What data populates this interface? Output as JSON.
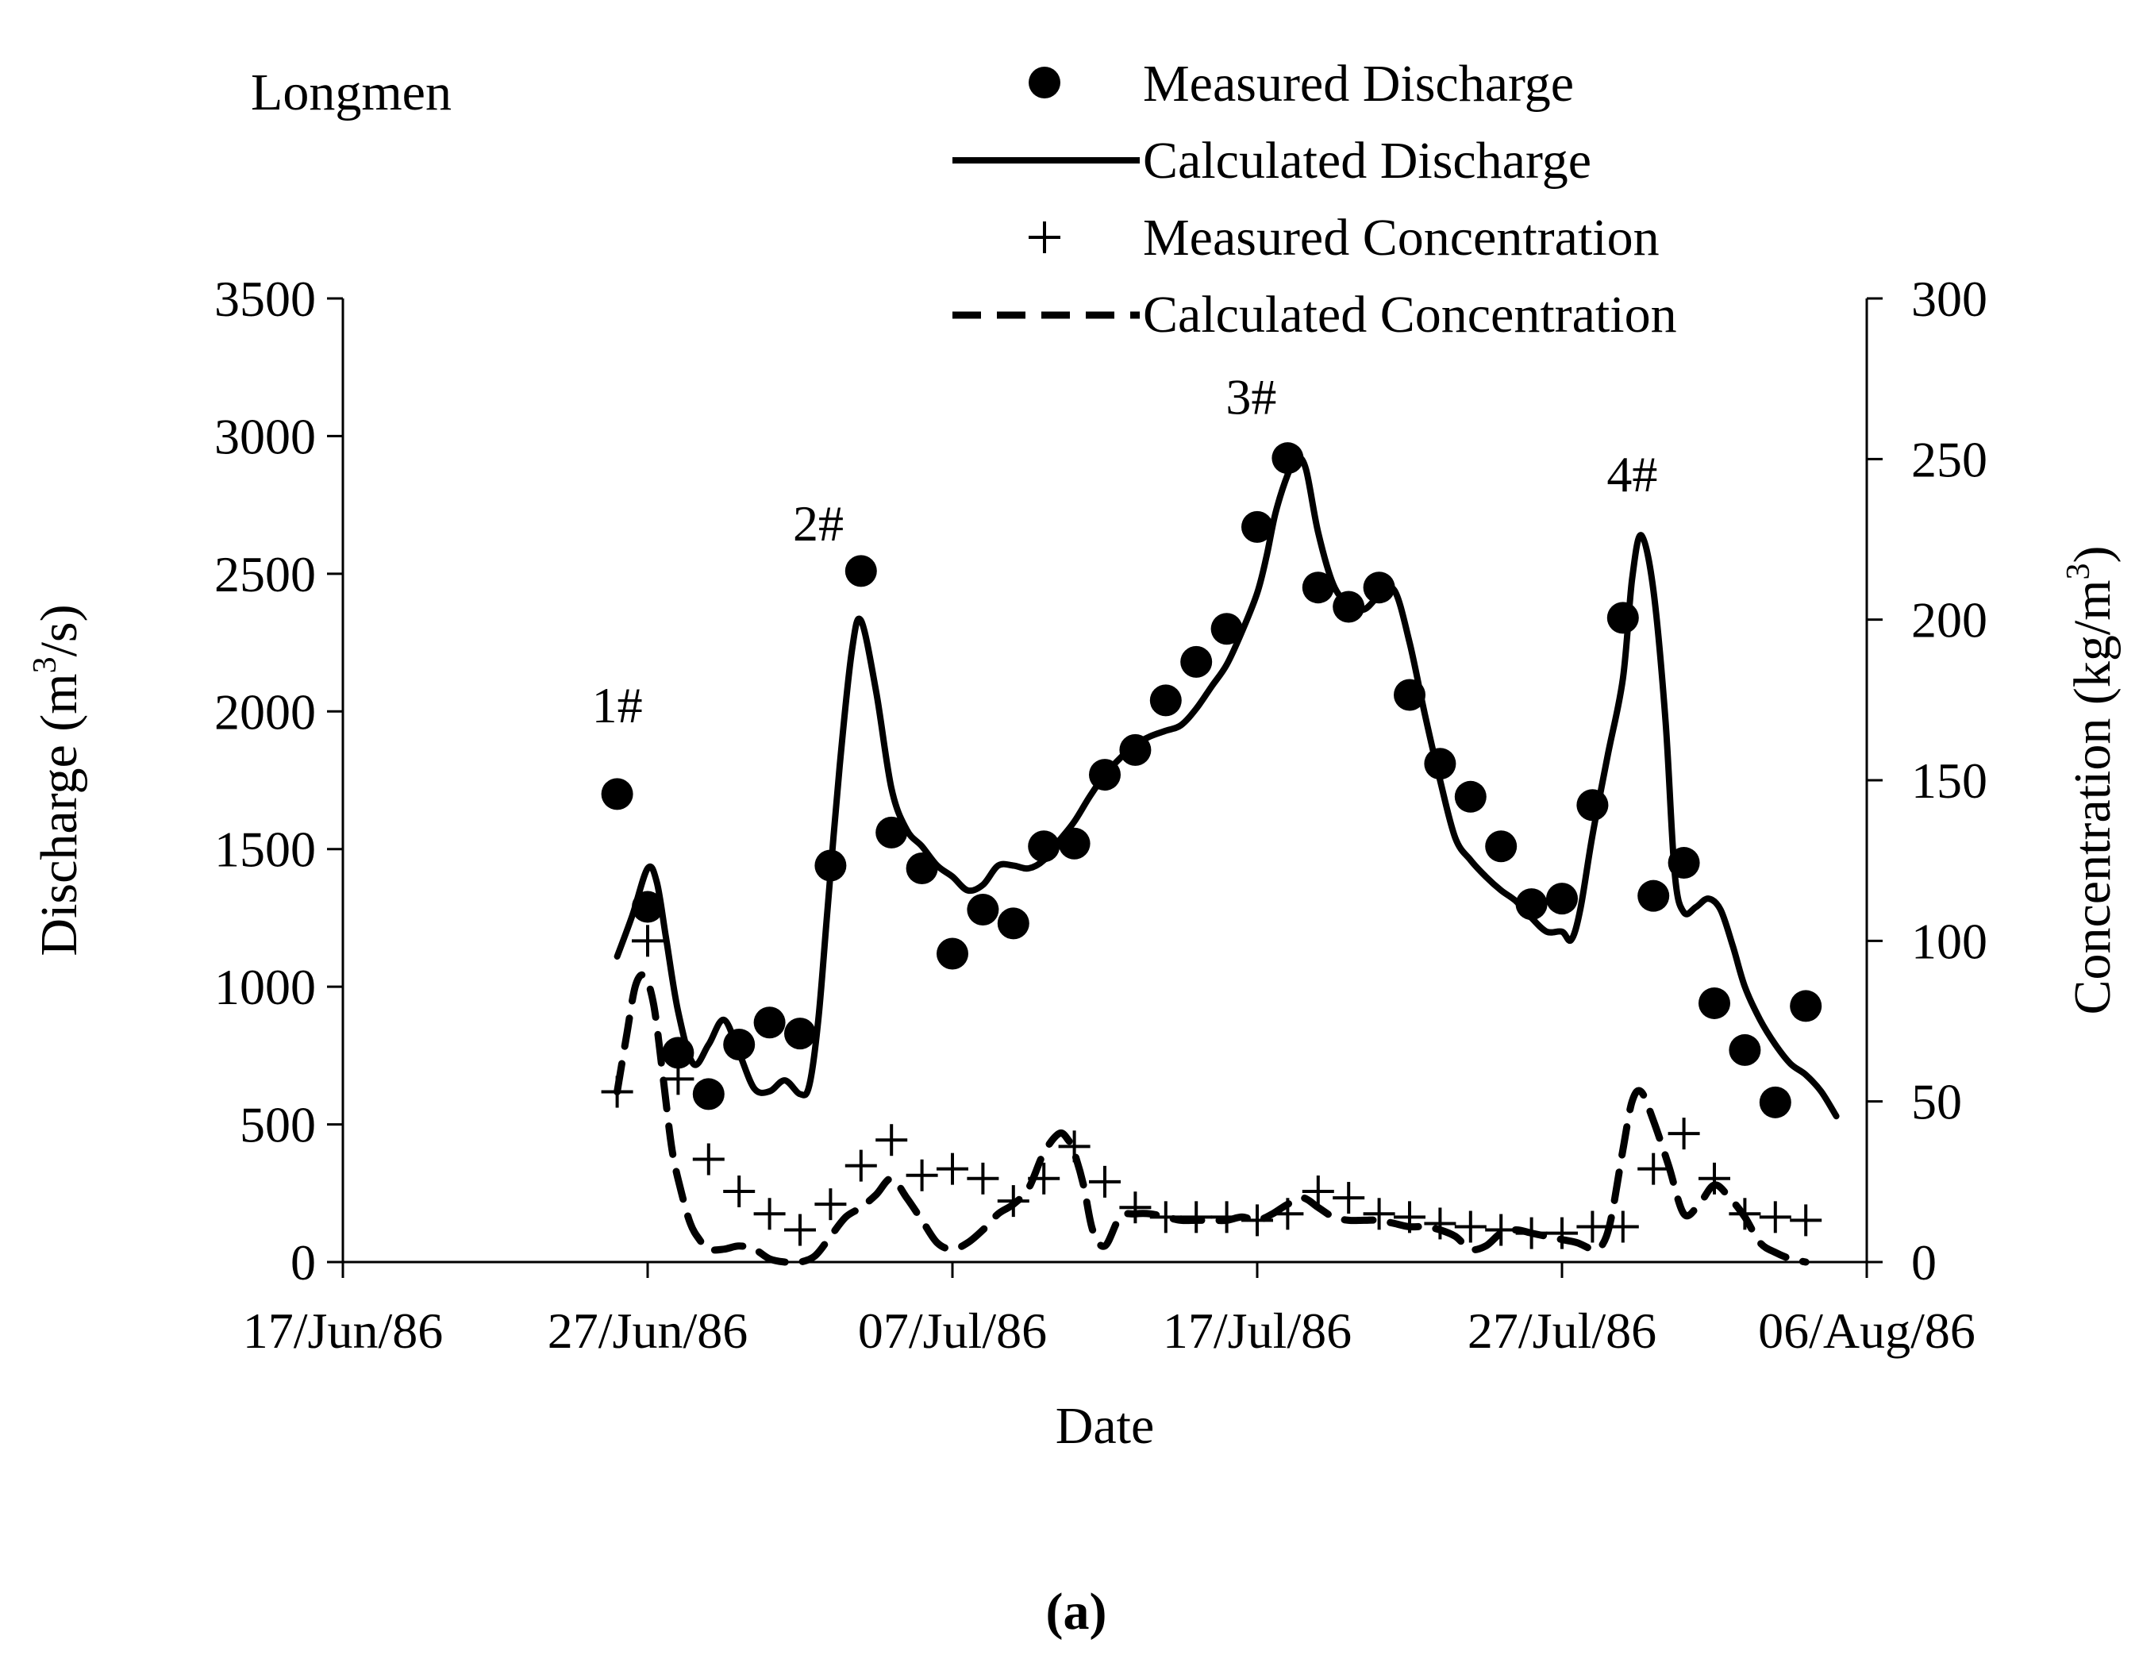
{
  "chart_data": {
    "type": "line",
    "station": "Longmen",
    "panel_label": "(a)",
    "xlabel": "Date",
    "ylabel_left": {
      "text": "Discharge (m",
      "sup": "3",
      "tail": "/s)"
    },
    "ylabel_right": {
      "text": "Concentration (kg/m",
      "sup": "3",
      "tail": ")"
    },
    "x_tick_labels": [
      "17/Jun/86",
      "27/Jun/86",
      "07/Jul/86",
      "17/Jul/86",
      "27/Jul/86",
      "06/Aug/86"
    ],
    "x_tick_values": [
      0,
      10,
      20,
      30,
      40,
      50
    ],
    "xlim": [
      0,
      50
    ],
    "y_left_ticks": [
      0,
      500,
      1000,
      1500,
      2000,
      2500,
      3000,
      3500
    ],
    "y_left_lim": [
      0,
      3500
    ],
    "y_right_ticks": [
      0,
      50,
      100,
      150,
      200,
      250,
      300
    ],
    "y_right_lim": [
      0,
      300
    ],
    "legend": [
      {
        "label": "Measured Discharge",
        "marker": "dot"
      },
      {
        "label": "Calculated Discharge",
        "marker": "solid"
      },
      {
        "label": "Measured Concentration",
        "marker": "plus"
      },
      {
        "label": "Calculated Concentration",
        "marker": "dashed"
      }
    ],
    "peaks": [
      {
        "label": "1#",
        "x": 9.0,
        "y": 1960
      },
      {
        "label": "2#",
        "x": 15.6,
        "y": 2620
      },
      {
        "label": "3#",
        "x": 29.8,
        "y": 3080
      },
      {
        "label": "4#",
        "x": 42.3,
        "y": 2800
      }
    ],
    "series": [
      {
        "name": "Measured Discharge",
        "axis": "left",
        "style": "dot",
        "x": [
          9.0,
          10.0,
          11.0,
          12.0,
          13.0,
          14.0,
          15.0,
          16.0,
          17.0,
          18.0,
          19.0,
          20.0,
          21.0,
          22.0,
          23.0,
          24.0,
          25.0,
          26.0,
          27.0,
          28.0,
          29.0,
          30.0,
          31.0,
          32.0,
          33.0,
          34.0,
          35.0,
          36.0,
          37.0,
          38.0,
          39.0,
          40.0,
          41.0,
          42.0,
          43.0,
          44.0,
          45.0,
          46.0,
          47.0,
          48.0
        ],
        "y": [
          1700,
          1290,
          760,
          610,
          790,
          870,
          830,
          1440,
          2510,
          1560,
          1430,
          1120,
          1280,
          1230,
          1510,
          1520,
          1770,
          1860,
          2040,
          2180,
          2300,
          2670,
          2920,
          2450,
          2380,
          2450,
          2060,
          1810,
          1690,
          1510,
          1300,
          1320,
          1660,
          2340,
          1330,
          1450,
          940,
          770,
          580,
          930
        ]
      },
      {
        "name": "Calculated Discharge",
        "axis": "left",
        "style": "solid",
        "x": [
          9.0,
          9.5,
          10.0,
          10.3,
          10.6,
          11.0,
          11.5,
          12.0,
          12.5,
          13.0,
          13.5,
          14.0,
          14.5,
          15.0,
          15.3,
          15.6,
          15.9,
          16.3,
          16.7,
          17.0,
          17.5,
          18.0,
          18.5,
          19.0,
          19.5,
          20.0,
          20.5,
          21.0,
          21.5,
          22.0,
          22.5,
          23.0,
          23.5,
          24.0,
          24.5,
          25.0,
          25.5,
          26.0,
          26.5,
          27.0,
          27.5,
          28.0,
          28.5,
          29.0,
          29.5,
          30.0,
          30.3,
          30.6,
          31.0,
          31.3,
          31.6,
          32.0,
          32.5,
          33.0,
          33.5,
          34.0,
          34.5,
          35.0,
          35.5,
          36.0,
          36.5,
          37.0,
          37.5,
          38.0,
          38.5,
          39.0,
          39.5,
          40.0,
          40.3,
          40.6,
          41.0,
          41.5,
          42.0,
          42.3,
          42.6,
          43.0,
          43.4,
          43.7,
          44.0,
          44.4,
          44.8,
          45.2,
          45.6,
          46.0,
          46.5,
          47.0,
          47.5,
          48.0,
          48.5,
          49.0
        ],
        "y": [
          1110,
          1260,
          1430,
          1380,
          1180,
          910,
          720,
          790,
          880,
          760,
          630,
          620,
          660,
          610,
          640,
          880,
          1280,
          1800,
          2220,
          2330,
          2070,
          1720,
          1570,
          1510,
          1440,
          1400,
          1350,
          1370,
          1440,
          1440,
          1430,
          1460,
          1530,
          1600,
          1690,
          1770,
          1830,
          1880,
          1910,
          1930,
          1950,
          2010,
          2090,
          2170,
          2290,
          2430,
          2560,
          2720,
          2860,
          2920,
          2880,
          2650,
          2460,
          2390,
          2370,
          2420,
          2440,
          2250,
          1990,
          1750,
          1540,
          1460,
          1400,
          1350,
          1310,
          1250,
          1200,
          1200,
          1170,
          1280,
          1550,
          1840,
          2120,
          2480,
          2640,
          2440,
          1960,
          1410,
          1270,
          1290,
          1320,
          1280,
          1150,
          1000,
          880,
          790,
          720,
          680,
          620,
          530
        ]
      },
      {
        "name": "Measured Concentration",
        "axis": "right",
        "style": "plus",
        "x": [
          9.0,
          10.0,
          11.0,
          12.0,
          13.0,
          14.0,
          15.0,
          16.0,
          17.0,
          18.0,
          19.0,
          20.0,
          21.0,
          22.0,
          23.0,
          24.0,
          25.0,
          26.0,
          27.0,
          28.0,
          29.0,
          30.0,
          31.0,
          32.0,
          33.0,
          34.0,
          35.0,
          36.0,
          37.0,
          38.0,
          39.0,
          40.0,
          41.0,
          42.0,
          43.0,
          44.0,
          45.0,
          46.0,
          47.0,
          48.0
        ],
        "y": [
          53,
          100,
          57,
          32,
          22,
          15,
          10,
          18,
          30,
          38,
          27,
          29,
          26,
          19,
          26,
          36,
          25,
          17,
          14,
          14,
          14,
          13,
          15,
          22,
          20,
          15,
          14,
          12,
          11,
          10,
          9,
          9,
          11,
          11,
          29,
          40,
          26,
          15,
          14,
          13
        ]
      },
      {
        "name": "Calculated Concentration",
        "axis": "right",
        "style": "dashed",
        "x": [
          9.0,
          9.3,
          9.6,
          9.9,
          10.2,
          10.5,
          10.8,
          11.1,
          11.4,
          11.7,
          12.0,
          12.5,
          13.0,
          13.5,
          14.0,
          14.5,
          15.0,
          15.5,
          16.0,
          16.5,
          17.0,
          17.5,
          18.0,
          18.5,
          19.0,
          19.5,
          20.0,
          20.5,
          21.0,
          21.5,
          22.0,
          22.5,
          23.0,
          23.5,
          23.8,
          24.0,
          24.3,
          24.6,
          25.0,
          25.5,
          26.0,
          26.5,
          27.0,
          27.5,
          28.0,
          28.5,
          29.0,
          29.5,
          30.0,
          30.5,
          31.0,
          31.5,
          32.0,
          32.5,
          33.0,
          33.5,
          34.0,
          34.5,
          35.0,
          35.5,
          36.0,
          36.5,
          37.0,
          37.5,
          38.0,
          38.5,
          39.0,
          39.5,
          40.0,
          40.5,
          41.0,
          41.3,
          41.6,
          42.0,
          42.3,
          42.6,
          43.0,
          43.5,
          44.0,
          44.5,
          45.0,
          45.5,
          46.0,
          46.5,
          47.0,
          47.5,
          48.0
        ],
        "y": [
          53,
          70,
          86,
          89,
          80,
          58,
          35,
          22,
          12,
          7,
          4,
          4,
          5,
          4,
          1,
          0,
          0,
          2,
          8,
          14,
          17,
          21,
          26,
          20,
          13,
          6,
          4,
          6,
          10,
          15,
          18,
          23,
          34,
          40,
          38,
          34,
          24,
          10,
          5,
          14,
          15,
          15,
          14,
          13,
          13,
          13,
          13,
          14,
          13,
          15,
          18,
          20,
          17,
          14,
          13,
          13,
          13,
          12,
          11,
          11,
          10,
          8,
          4,
          5,
          9,
          10,
          9,
          8,
          7,
          6,
          4,
          5,
          13,
          35,
          50,
          53,
          44,
          30,
          15,
          18,
          24,
          20,
          14,
          6,
          3,
          1,
          0
        ]
      }
    ]
  }
}
